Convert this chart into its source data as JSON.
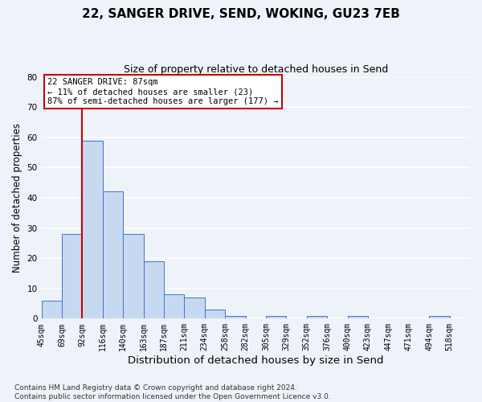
{
  "title": "22, SANGER DRIVE, SEND, WOKING, GU23 7EB",
  "subtitle": "Size of property relative to detached houses in Send",
  "xlabel": "Distribution of detached houses by size in Send",
  "ylabel": "Number of detached properties",
  "bin_labels": [
    "45sqm",
    "69sqm",
    "92sqm",
    "116sqm",
    "140sqm",
    "163sqm",
    "187sqm",
    "211sqm",
    "234sqm",
    "258sqm",
    "282sqm",
    "305sqm",
    "329sqm",
    "352sqm",
    "376sqm",
    "400sqm",
    "423sqm",
    "447sqm",
    "471sqm",
    "494sqm",
    "518sqm"
  ],
  "bar_heights": [
    6,
    28,
    59,
    42,
    28,
    19,
    8,
    7,
    3,
    1,
    0,
    1,
    0,
    1,
    0,
    1,
    0,
    0,
    0,
    1,
    0
  ],
  "bar_color": "#c6d9f1",
  "bar_edge_color": "#4472c4",
  "ylim": [
    0,
    80
  ],
  "yticks": [
    0,
    10,
    20,
    30,
    40,
    50,
    60,
    70,
    80
  ],
  "property_line_x": 2,
  "property_line_color": "#cc0000",
  "annotation_title": "22 SANGER DRIVE: 87sqm",
  "annotation_line1": "← 11% of detached houses are smaller (23)",
  "annotation_line2": "87% of semi-detached houses are larger (177) →",
  "annotation_box_color": "#ffffff",
  "annotation_box_edge": "#cc0000",
  "footer_line1": "Contains HM Land Registry data © Crown copyright and database right 2024.",
  "footer_line2": "Contains public sector information licensed under the Open Government Licence v3.0.",
  "background_color": "#eef2f9",
  "plot_background": "#eef2f9",
  "grid_color": "#ffffff",
  "title_fontsize": 11,
  "subtitle_fontsize": 9,
  "xlabel_fontsize": 9.5,
  "ylabel_fontsize": 8.5,
  "tick_fontsize": 7,
  "footer_fontsize": 6.5
}
